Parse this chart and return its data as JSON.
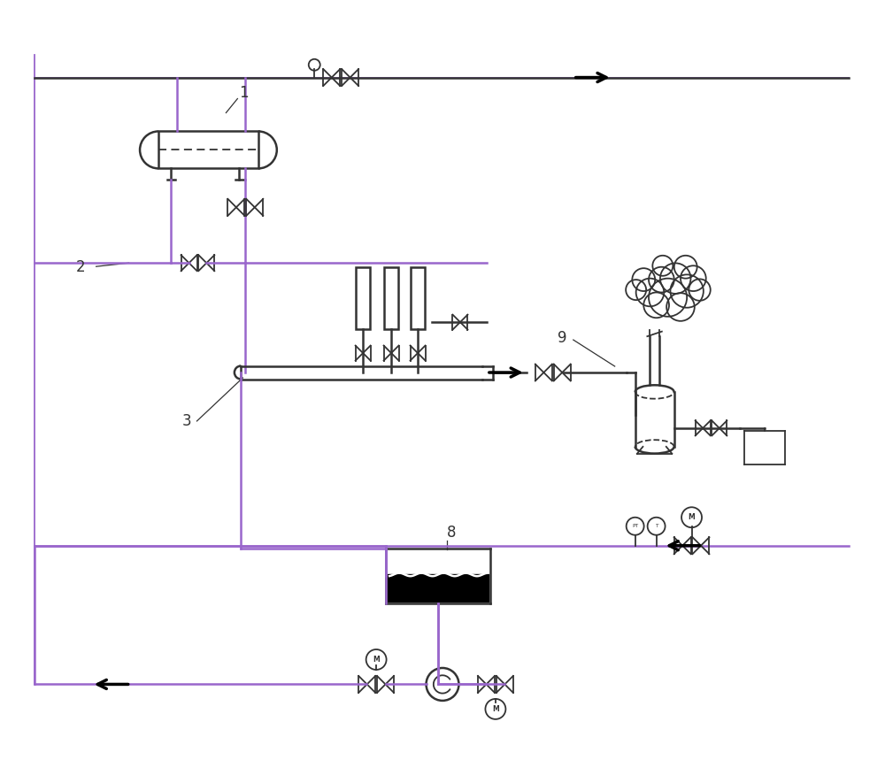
{
  "bg_color": "#ffffff",
  "lc": "#333333",
  "purple": "#9966CC",
  "figsize": [
    10.0,
    8.59
  ],
  "dpi": 100,
  "xlim": [
    0,
    10
  ],
  "ylim": [
    0,
    8.59
  ]
}
